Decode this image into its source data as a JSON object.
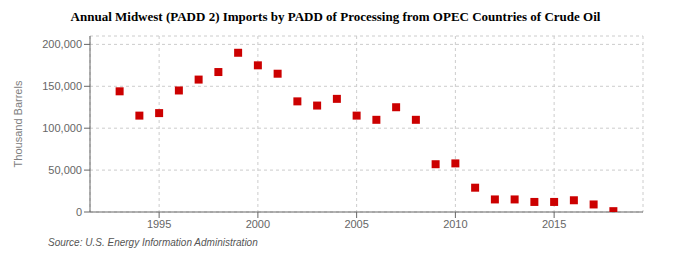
{
  "chart_data": {
    "type": "scatter",
    "title": "Annual Midwest (PADD 2) Imports by PADD of Processing from OPEC Countries of Crude Oil",
    "ylabel": "Thousand Barrels",
    "annotations": [
      "Source: U.S. Energy Information Administration"
    ],
    "x": [
      1993,
      1994,
      1995,
      1996,
      1997,
      1998,
      1999,
      2000,
      2001,
      2002,
      2003,
      2004,
      2005,
      2006,
      2007,
      2008,
      2009,
      2010,
      2011,
      2012,
      2013,
      2014,
      2015,
      2016,
      2017,
      2018
    ],
    "values": [
      144000,
      115000,
      118000,
      145000,
      158000,
      167000,
      190000,
      175000,
      165000,
      132000,
      127000,
      135000,
      115000,
      110000,
      125000,
      110000,
      57000,
      58000,
      29000,
      15000,
      15000,
      12000,
      12000,
      14000,
      9000,
      1000
    ],
    "color": "#cc0000",
    "marker": "square",
    "grid": true,
    "xlim": [
      1991.5,
      2019.5
    ],
    "xticks": [
      1995,
      2000,
      2005,
      2010,
      2015
    ],
    "ylim": [
      0,
      210000
    ],
    "yticks": [
      0,
      {
        "value": 50000,
        "label": "50,000"
      },
      {
        "value": 100000,
        "label": "100,000"
      },
      {
        "value": 150000,
        "label": "150,000"
      },
      {
        "value": 200000,
        "label": "200,000"
      }
    ]
  }
}
